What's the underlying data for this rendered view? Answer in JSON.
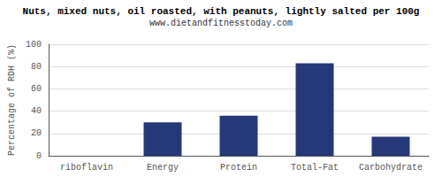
{
  "chart_data": {
    "type": "bar",
    "title": "Nuts, mixed nuts, oil roasted, with peanuts, lightly salted per 100g",
    "subtitle": "www.dietandfitnesstoday.com",
    "ylabel": "Percentage of RDH (%)",
    "categories": [
      "riboflavin",
      "Energy",
      "Protein",
      "Total-Fat",
      "Carbohydrate"
    ],
    "values": [
      0,
      30,
      36,
      83,
      17
    ],
    "color": "#253878",
    "ylim": [
      0,
      100
    ],
    "yticks": [
      0,
      20,
      40,
      60,
      80,
      100
    ],
    "grid": true
  }
}
